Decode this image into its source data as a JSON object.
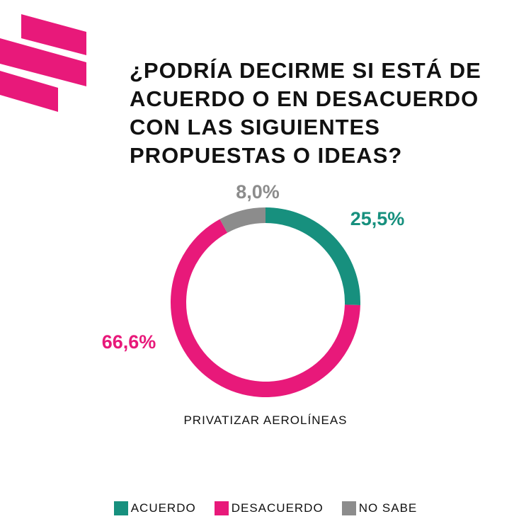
{
  "logo": {
    "icon": "brand-stripes-logo",
    "color": "#E8197A"
  },
  "title_lines": [
    "¿PODRÍA DECIRME SI ESTÁ DE",
    "ACUERDO O EN DESACUERDO",
    "CON LAS SIGUIENTES",
    "PROPUESTAS O IDEAS?"
  ],
  "chart_data": {
    "type": "pie",
    "donut": true,
    "title": "¿PODRÍA DECIRME SI ESTÁ DE ACUERDO O EN DESACUERDO CON LAS SIGUIENTES PROPUESTAS O IDEAS?",
    "subtitle": "PRIVATIZAR AEROLÍNEAS",
    "legend_position": "bottom",
    "slices": [
      {
        "name": "ACUERDO",
        "value": 25.5,
        "label": "25,5%",
        "color": "#17907E"
      },
      {
        "name": "DESACUERDO",
        "value": 66.6,
        "label": "66,6%",
        "color": "#E8197A"
      },
      {
        "name": "NO SABE",
        "value": 8.0,
        "label": "8,0%",
        "color": "#8C8C8C"
      }
    ]
  }
}
